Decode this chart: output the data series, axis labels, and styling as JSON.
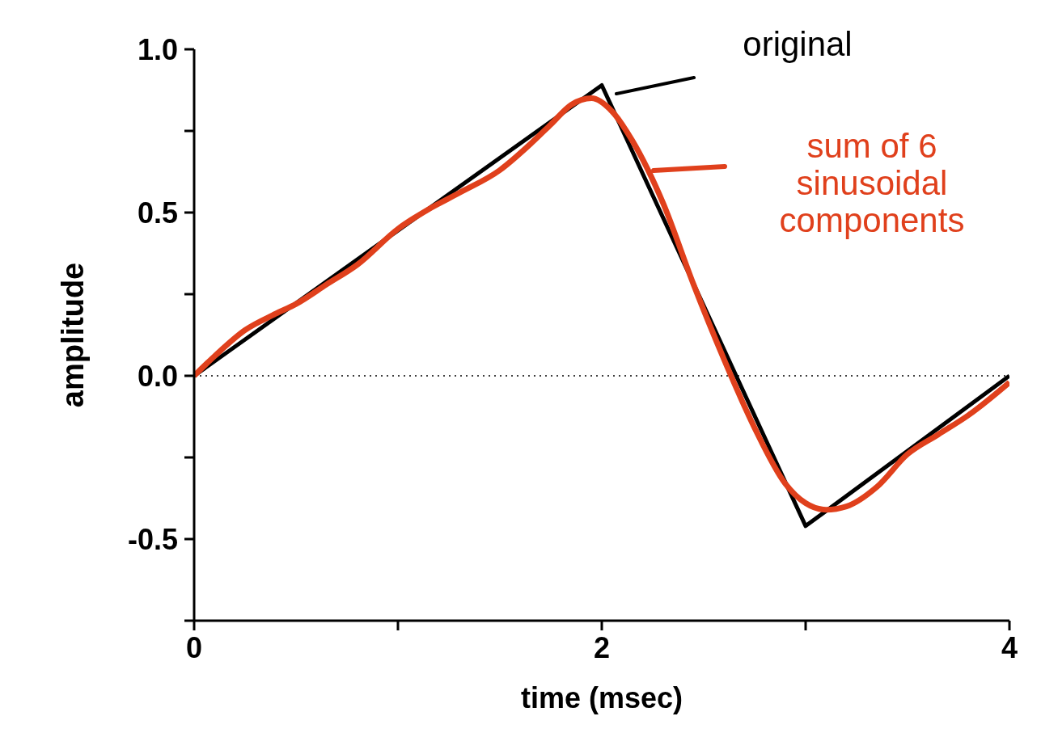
{
  "chart_data": {
    "type": "line",
    "xlabel": "time (msec)",
    "ylabel": "amplitude",
    "xlim": [
      0,
      4
    ],
    "xticks": [
      0,
      {
        "value": 1,
        "label": null
      },
      2,
      {
        "value": 3,
        "label": null
      },
      4
    ],
    "ylim": [
      -0.75,
      1
    ],
    "yticks": [
      {
        "value": -0.75,
        "label": null
      },
      {
        "value": -0.5,
        "label": "-0.5"
      },
      {
        "value": -0.25,
        "label": null
      },
      {
        "value": 0,
        "label": "0.0"
      },
      {
        "value": 0.25,
        "label": null
      },
      {
        "value": 0.5,
        "label": "0.5"
      },
      {
        "value": 0.75,
        "label": null
      },
      {
        "value": 1,
        "label": "1.0"
      }
    ],
    "marker": "none",
    "line_style": "solid",
    "ref_lines": [
      {
        "axis": "y",
        "value": 0,
        "label": null,
        "color": "#000000",
        "line_style": "dotted"
      }
    ],
    "series": [
      {
        "name": "original",
        "color": "#000000",
        "x": [
          0,
          2,
          3,
          4
        ],
        "values": [
          0,
          0.89,
          -0.46,
          0
        ]
      },
      {
        "name": "sum of 6 sinusoidal components",
        "color": "#e0401c",
        "x": [
          0,
          0.1,
          0.25,
          0.4,
          0.5,
          0.65,
          0.8,
          1.0,
          1.15,
          1.3,
          1.5,
          1.65,
          1.75,
          1.85,
          1.95,
          2.05,
          2.15,
          2.3,
          2.45,
          2.6,
          2.75,
          2.9,
          3.0,
          3.1,
          3.2,
          3.35,
          3.5,
          3.65,
          3.8,
          4.0
        ],
        "values": [
          0,
          0.06,
          0.14,
          0.19,
          0.22,
          0.28,
          0.34,
          0.45,
          0.51,
          0.56,
          0.63,
          0.71,
          0.77,
          0.83,
          0.85,
          0.81,
          0.72,
          0.53,
          0.28,
          0.05,
          -0.16,
          -0.33,
          -0.39,
          -0.41,
          -0.4,
          -0.34,
          -0.24,
          -0.18,
          -0.12,
          -0.02
        ]
      }
    ]
  }
}
